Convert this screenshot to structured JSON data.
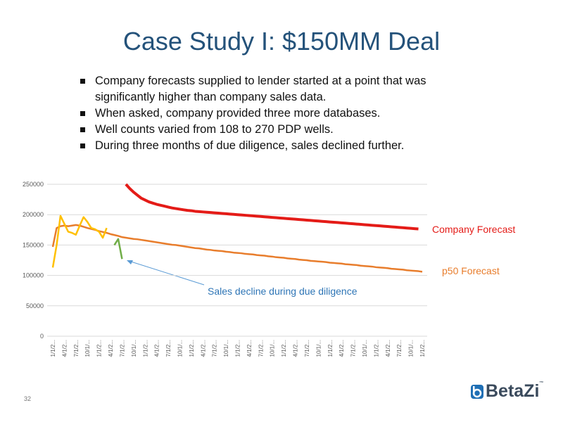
{
  "title": "Case Study I: $150MM Deal",
  "bullets": [
    "Company forecasts supplied to lender started at a point that was significantly higher than company sales data.",
    "When asked, company provided three more databases.",
    "Well counts varied from 108 to 270 PDP wells.",
    "During three months of due diligence, sales declined further."
  ],
  "page_number": "32",
  "logo": "BetaZi",
  "logo_mark": "™",
  "chart_data": {
    "type": "line",
    "categories": [
      "1/1/2...",
      null,
      null,
      "4/1/2...",
      null,
      null,
      "7/1/2...",
      null,
      null,
      "10/1/...",
      null,
      null,
      "1/1/2...",
      null,
      null,
      "4/1/2...",
      null,
      null,
      "7/1/2...",
      null,
      null,
      "10/1/...",
      null,
      null,
      "1/1/2...",
      null,
      null,
      "4/1/2...",
      null,
      null,
      "7/1/2...",
      null,
      null,
      "10/1/...",
      null,
      null,
      "1/1/2...",
      null,
      null,
      "4/1/2...",
      null,
      null,
      "7/1/2...",
      null,
      null,
      "10/1/...",
      null,
      null,
      "1/1/2...",
      null,
      null,
      "4/1/2...",
      null,
      null,
      "7/1/2...",
      null,
      null,
      "10/1/...",
      null,
      null,
      "1/1/2...",
      null,
      null,
      "4/1/2...",
      null,
      null,
      "7/1/2...",
      null,
      null,
      "10/1/...",
      null,
      null,
      "1/1/2...",
      null,
      null,
      "4/1/2...",
      null,
      null,
      "7/1/2...",
      null,
      null,
      "10/1/...",
      null,
      null,
      "1/1/2...",
      null,
      null,
      "4/1/2...",
      null,
      null,
      "7/1/2...",
      null,
      null,
      "10/1/...",
      null,
      null,
      "1/1/2..."
    ],
    "series": [
      {
        "name": "Company Forecast",
        "color": "#e41b17",
        "values": [
          null,
          null,
          null,
          null,
          null,
          null,
          null,
          null,
          null,
          null,
          null,
          null,
          null,
          null,
          null,
          null,
          null,
          null,
          null,
          250000,
          243000,
          237000,
          232000,
          227000,
          224000,
          221000,
          219000,
          217000,
          215500,
          214000,
          212500,
          211000,
          210000,
          209000,
          208000,
          207000,
          206500,
          205500,
          205000,
          204500,
          204000,
          203500,
          203000,
          202500,
          202000,
          201500,
          201000,
          200500,
          200000,
          199500,
          199000,
          198500,
          198000,
          197500,
          197000,
          196500,
          196000,
          195500,
          195000,
          194500,
          194000,
          193500,
          193000,
          192500,
          192000,
          191500,
          191000,
          190500,
          190000,
          189500,
          189000,
          188500,
          188000,
          187500,
          187000,
          186500,
          186000,
          185500,
          185000,
          184500,
          184000,
          183500,
          183000,
          182500,
          182000,
          181500,
          181000,
          180500,
          180000,
          179500,
          179000,
          178500,
          178000,
          177500,
          177000,
          176500,
          null
        ]
      },
      {
        "name": "p50 Forecast",
        "color": "#e87d2c",
        "values": [
          147000,
          178000,
          181000,
          182000,
          181000,
          182000,
          183000,
          182000,
          180000,
          178000,
          176500,
          175000,
          173000,
          171500,
          170000,
          168000,
          166500,
          165000,
          163000,
          162000,
          161000,
          160000,
          159500,
          158500,
          157500,
          156500,
          155500,
          154500,
          153500,
          152500,
          151500,
          150500,
          150000,
          149000,
          148000,
          147000,
          146000,
          145000,
          144500,
          143500,
          142500,
          142000,
          141000,
          140500,
          140000,
          139000,
          138500,
          137500,
          137000,
          136500,
          135500,
          135000,
          134500,
          133500,
          133000,
          132500,
          131500,
          131000,
          130000,
          129500,
          129000,
          128000,
          127500,
          127000,
          126000,
          125500,
          125000,
          124000,
          123500,
          123000,
          122500,
          122000,
          121000,
          120500,
          120000,
          119500,
          118500,
          118000,
          117500,
          117000,
          116000,
          115500,
          115000,
          114500,
          113500,
          113000,
          112500,
          112000,
          111000,
          110500,
          110000,
          109500,
          108500,
          108000,
          107500,
          107000,
          106000
        ]
      },
      {
        "color": "#ffc000",
        "values": [
          113000,
          150000,
          198000,
          185000,
          172000,
          170000,
          167000,
          182000,
          196000,
          188000,
          178000,
          176000,
          172000,
          162000,
          178000,
          null,
          null,
          null,
          null,
          null,
          null,
          null,
          null,
          null,
          null,
          null,
          null,
          null,
          null,
          null,
          null,
          null,
          null,
          null,
          null,
          null,
          null,
          null,
          null,
          null,
          null,
          null,
          null,
          null,
          null,
          null,
          null,
          null,
          null,
          null,
          null,
          null,
          null,
          null,
          null,
          null,
          null,
          null,
          null,
          null,
          null,
          null,
          null,
          null,
          null,
          null,
          null,
          null,
          null,
          null,
          null,
          null,
          null,
          null,
          null,
          null,
          null,
          null,
          null,
          null,
          null,
          null,
          null,
          null,
          null,
          null,
          null,
          null,
          null,
          null,
          null,
          null,
          null,
          null,
          null,
          null,
          null
        ]
      },
      {
        "color": "#70ad47",
        "values": [
          null,
          null,
          null,
          null,
          null,
          null,
          null,
          null,
          null,
          null,
          null,
          null,
          null,
          null,
          null,
          null,
          150000,
          160000,
          127000,
          null,
          null,
          null,
          null,
          null,
          null,
          null,
          null,
          null,
          null,
          null,
          null,
          null,
          null,
          null,
          null,
          null,
          null,
          null,
          null,
          null,
          null,
          null,
          null,
          null,
          null,
          null,
          null,
          null,
          null,
          null,
          null,
          null,
          null,
          null,
          null,
          null,
          null,
          null,
          null,
          null,
          null,
          null,
          null,
          null,
          null,
          null,
          null,
          null,
          null,
          null,
          null,
          null,
          null,
          null,
          null,
          null,
          null,
          null,
          null,
          null,
          null,
          null,
          null,
          null,
          null,
          null,
          null,
          null,
          null,
          null,
          null,
          null,
          null,
          null,
          null,
          null,
          null
        ]
      }
    ],
    "annotations": [
      "Sales decline during due diligence"
    ],
    "ylim": [
      0,
      250000
    ],
    "yticks": [
      0,
      50000,
      100000,
      150000,
      200000,
      250000
    ],
    "grid": true
  }
}
